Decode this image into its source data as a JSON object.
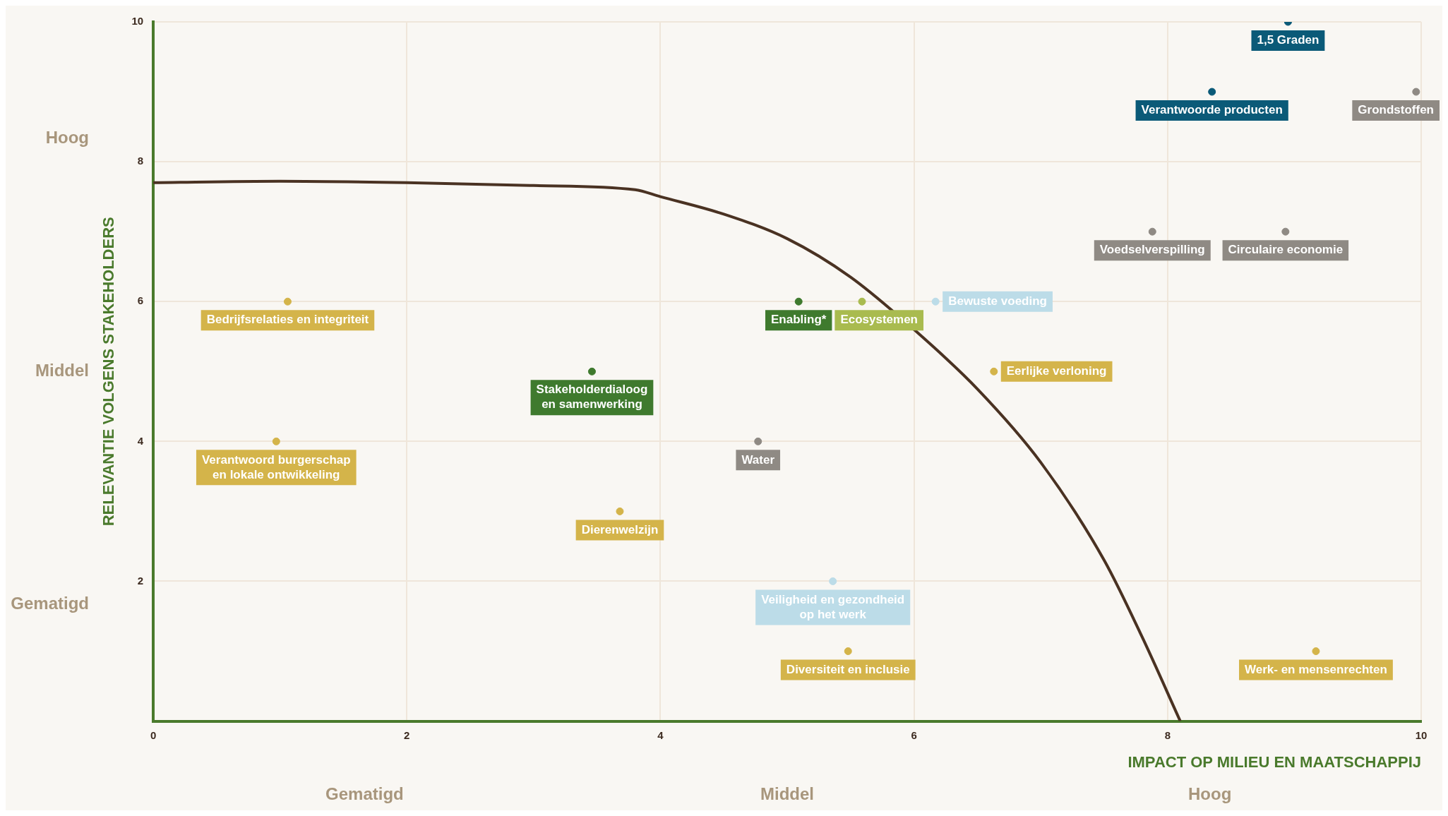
{
  "chart_data": {
    "type": "scatter",
    "xlabel": "IMPACT OP MILIEU EN MAATSCHAPPIJ",
    "ylabel": "RELEVANTIE VOLGENS STAKEHOLDERS",
    "xlim": [
      0,
      10
    ],
    "ylim": [
      0,
      10
    ],
    "xticks": [
      0,
      2,
      4,
      6,
      8,
      10
    ],
    "yticks": [
      2,
      4,
      6,
      8,
      10
    ],
    "annotations": [
      "Gematigd",
      "Middel",
      "Hoog",
      "Gematigd",
      "Middel",
      "Hoog"
    ],
    "grid": true,
    "series": [
      {
        "name": "1,5 Graden",
        "color": "#0b5a78",
        "x": [
          8.95
        ],
        "values": [
          10
        ]
      },
      {
        "name": "Verantwoorde producten",
        "color": "#0b5a78",
        "x": [
          8.35
        ],
        "values": [
          9
        ]
      },
      {
        "name": "Grondstoffen",
        "color": "#8f8a84",
        "x": [
          9.96
        ],
        "values": [
          9
        ]
      },
      {
        "name": "Voedselverspilling",
        "color": "#8f8a84",
        "x": [
          7.88
        ],
        "values": [
          7
        ]
      },
      {
        "name": "Circulaire economie",
        "color": "#8f8a84",
        "x": [
          8.93
        ],
        "values": [
          7
        ]
      },
      {
        "name": "Bedrijfsrelaties en integriteit",
        "color": "#d4b44a",
        "x": [
          1.06
        ],
        "values": [
          6
        ]
      },
      {
        "name": "Enabling*",
        "color": "#3f7a2e",
        "x": [
          5.09
        ],
        "values": [
          6
        ]
      },
      {
        "name": "Ecosystemen",
        "color": "#a9bb4f",
        "x": [
          5.59
        ],
        "values": [
          6
        ]
      },
      {
        "name": "Bewuste voeding",
        "color": "#bcdce8",
        "x": [
          6.17
        ],
        "values": [
          6
        ]
      },
      {
        "name": "Stakeholderdialoog\nen samenwerking",
        "color": "#3f7a2e",
        "x": [
          3.46
        ],
        "values": [
          5
        ]
      },
      {
        "name": "Eerlijke verloning",
        "color": "#d4b44a",
        "x": [
          6.63
        ],
        "values": [
          5
        ]
      },
      {
        "name": "Verantwoord burgerschap\nen lokale ontwikkeling",
        "color": "#d4b44a",
        "x": [
          0.97
        ],
        "values": [
          4
        ]
      },
      {
        "name": "Water",
        "color": "#8f8a84",
        "x": [
          4.77
        ],
        "values": [
          4
        ]
      },
      {
        "name": "Dierenwelzijn",
        "color": "#d4b44a",
        "x": [
          3.68
        ],
        "values": [
          3
        ]
      },
      {
        "name": "Veiligheid en gezondheid\nop het werk",
        "color": "#bcdce8",
        "x": [
          5.36
        ],
        "values": [
          2
        ]
      },
      {
        "name": "Diversiteit en inclusie",
        "color": "#d4b44a",
        "x": [
          5.48
        ],
        "values": [
          1
        ]
      },
      {
        "name": "Werk- en mensenrechten",
        "color": "#d4b44a",
        "x": [
          9.17
        ],
        "values": [
          1
        ]
      },
      {
        "type": "line",
        "color": "#4a3222",
        "x": [
          0,
          1,
          2,
          3,
          3.8,
          4,
          4.5,
          5,
          5.5,
          6,
          6.5,
          7,
          7.5,
          7.8,
          8.1
        ],
        "values": [
          7.7,
          7.72,
          7.7,
          7.66,
          7.6,
          7.5,
          7.25,
          6.9,
          6.35,
          5.6,
          4.75,
          3.7,
          2.3,
          1.2,
          0
        ]
      }
    ]
  }
}
